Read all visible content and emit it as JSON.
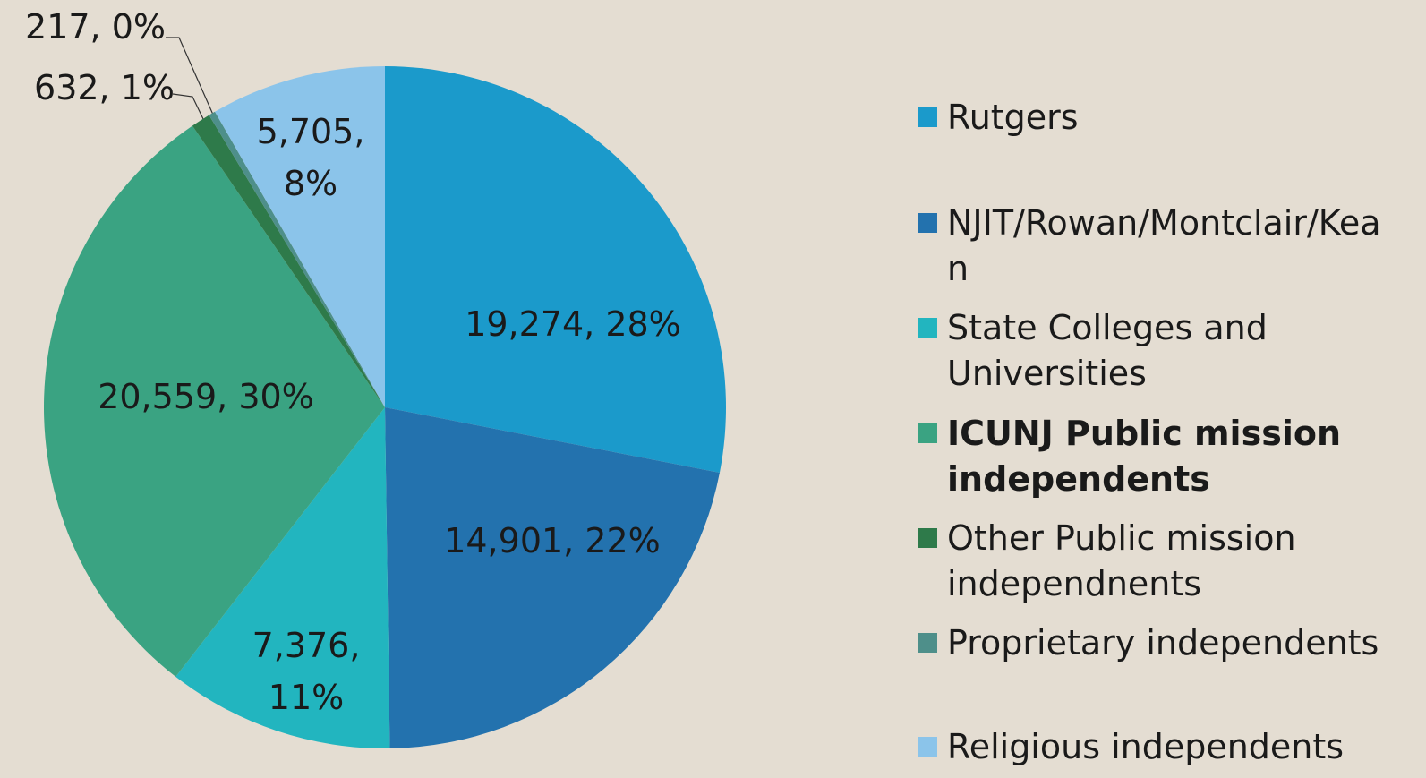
{
  "chart_data": {
    "type": "pie",
    "categories": [
      "Rutgers",
      "NJIT/Rowan/Montclair/Kean",
      "State Colleges and Universities",
      "ICUNJ Public mission independents",
      "Other Public mission independnents",
      "Proprietary independents",
      "Religious independents"
    ],
    "values": [
      19274,
      14901,
      7376,
      20559,
      632,
      217,
      5705
    ],
    "value_labels": [
      "19,274, 28%",
      "14,901, 22%",
      "7,376, 11%",
      "20,559, 30%",
      "632, 1%",
      "217, 0%",
      "5,705, 8%"
    ],
    "colors": [
      "#1b9acb",
      "#2372ae",
      "#22b5bf",
      "#3aa382",
      "#2e7a4a",
      "#4e8f8a",
      "#8bc4ea"
    ],
    "highlight": 3,
    "legend": "right"
  }
}
